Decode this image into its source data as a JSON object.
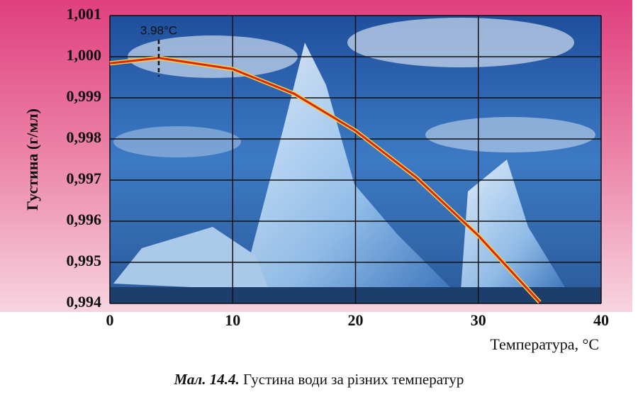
{
  "chart_data": {
    "type": "line",
    "x_label": "Температура, °C",
    "y_label": "Густина (г/мл)",
    "caption_label": "Мал. 14.4.",
    "caption": "Густина води за різних температур",
    "x": [
      0,
      4,
      10,
      15,
      20,
      25,
      30,
      35
    ],
    "series": [
      {
        "name": "Густина води",
        "color": "#d8261c",
        "values": [
          0.99984,
          0.99997,
          0.9997,
          0.9991,
          0.9982,
          0.99705,
          0.99565,
          0.99403
        ]
      }
    ],
    "xlim": [
      0,
      40
    ],
    "xticks": [
      0,
      10,
      20,
      30,
      40
    ],
    "ylim": [
      0.994,
      1.001
    ],
    "yticks": [
      {
        "value": 0.994,
        "label": "0,994"
      },
      {
        "value": 0.995,
        "label": "0,995"
      },
      {
        "value": 0.996,
        "label": "0,996"
      },
      {
        "value": 0.997,
        "label": "0,997"
      },
      {
        "value": 0.998,
        "label": "0,998"
      },
      {
        "value": 0.999,
        "label": "0,999"
      },
      {
        "value": 1.0,
        "label": "1,000"
      },
      {
        "value": 1.001,
        "label": "1,001"
      }
    ],
    "annotations": [
      {
        "text": "3.98°C",
        "x": 3.98
      }
    ],
    "grid": true
  }
}
